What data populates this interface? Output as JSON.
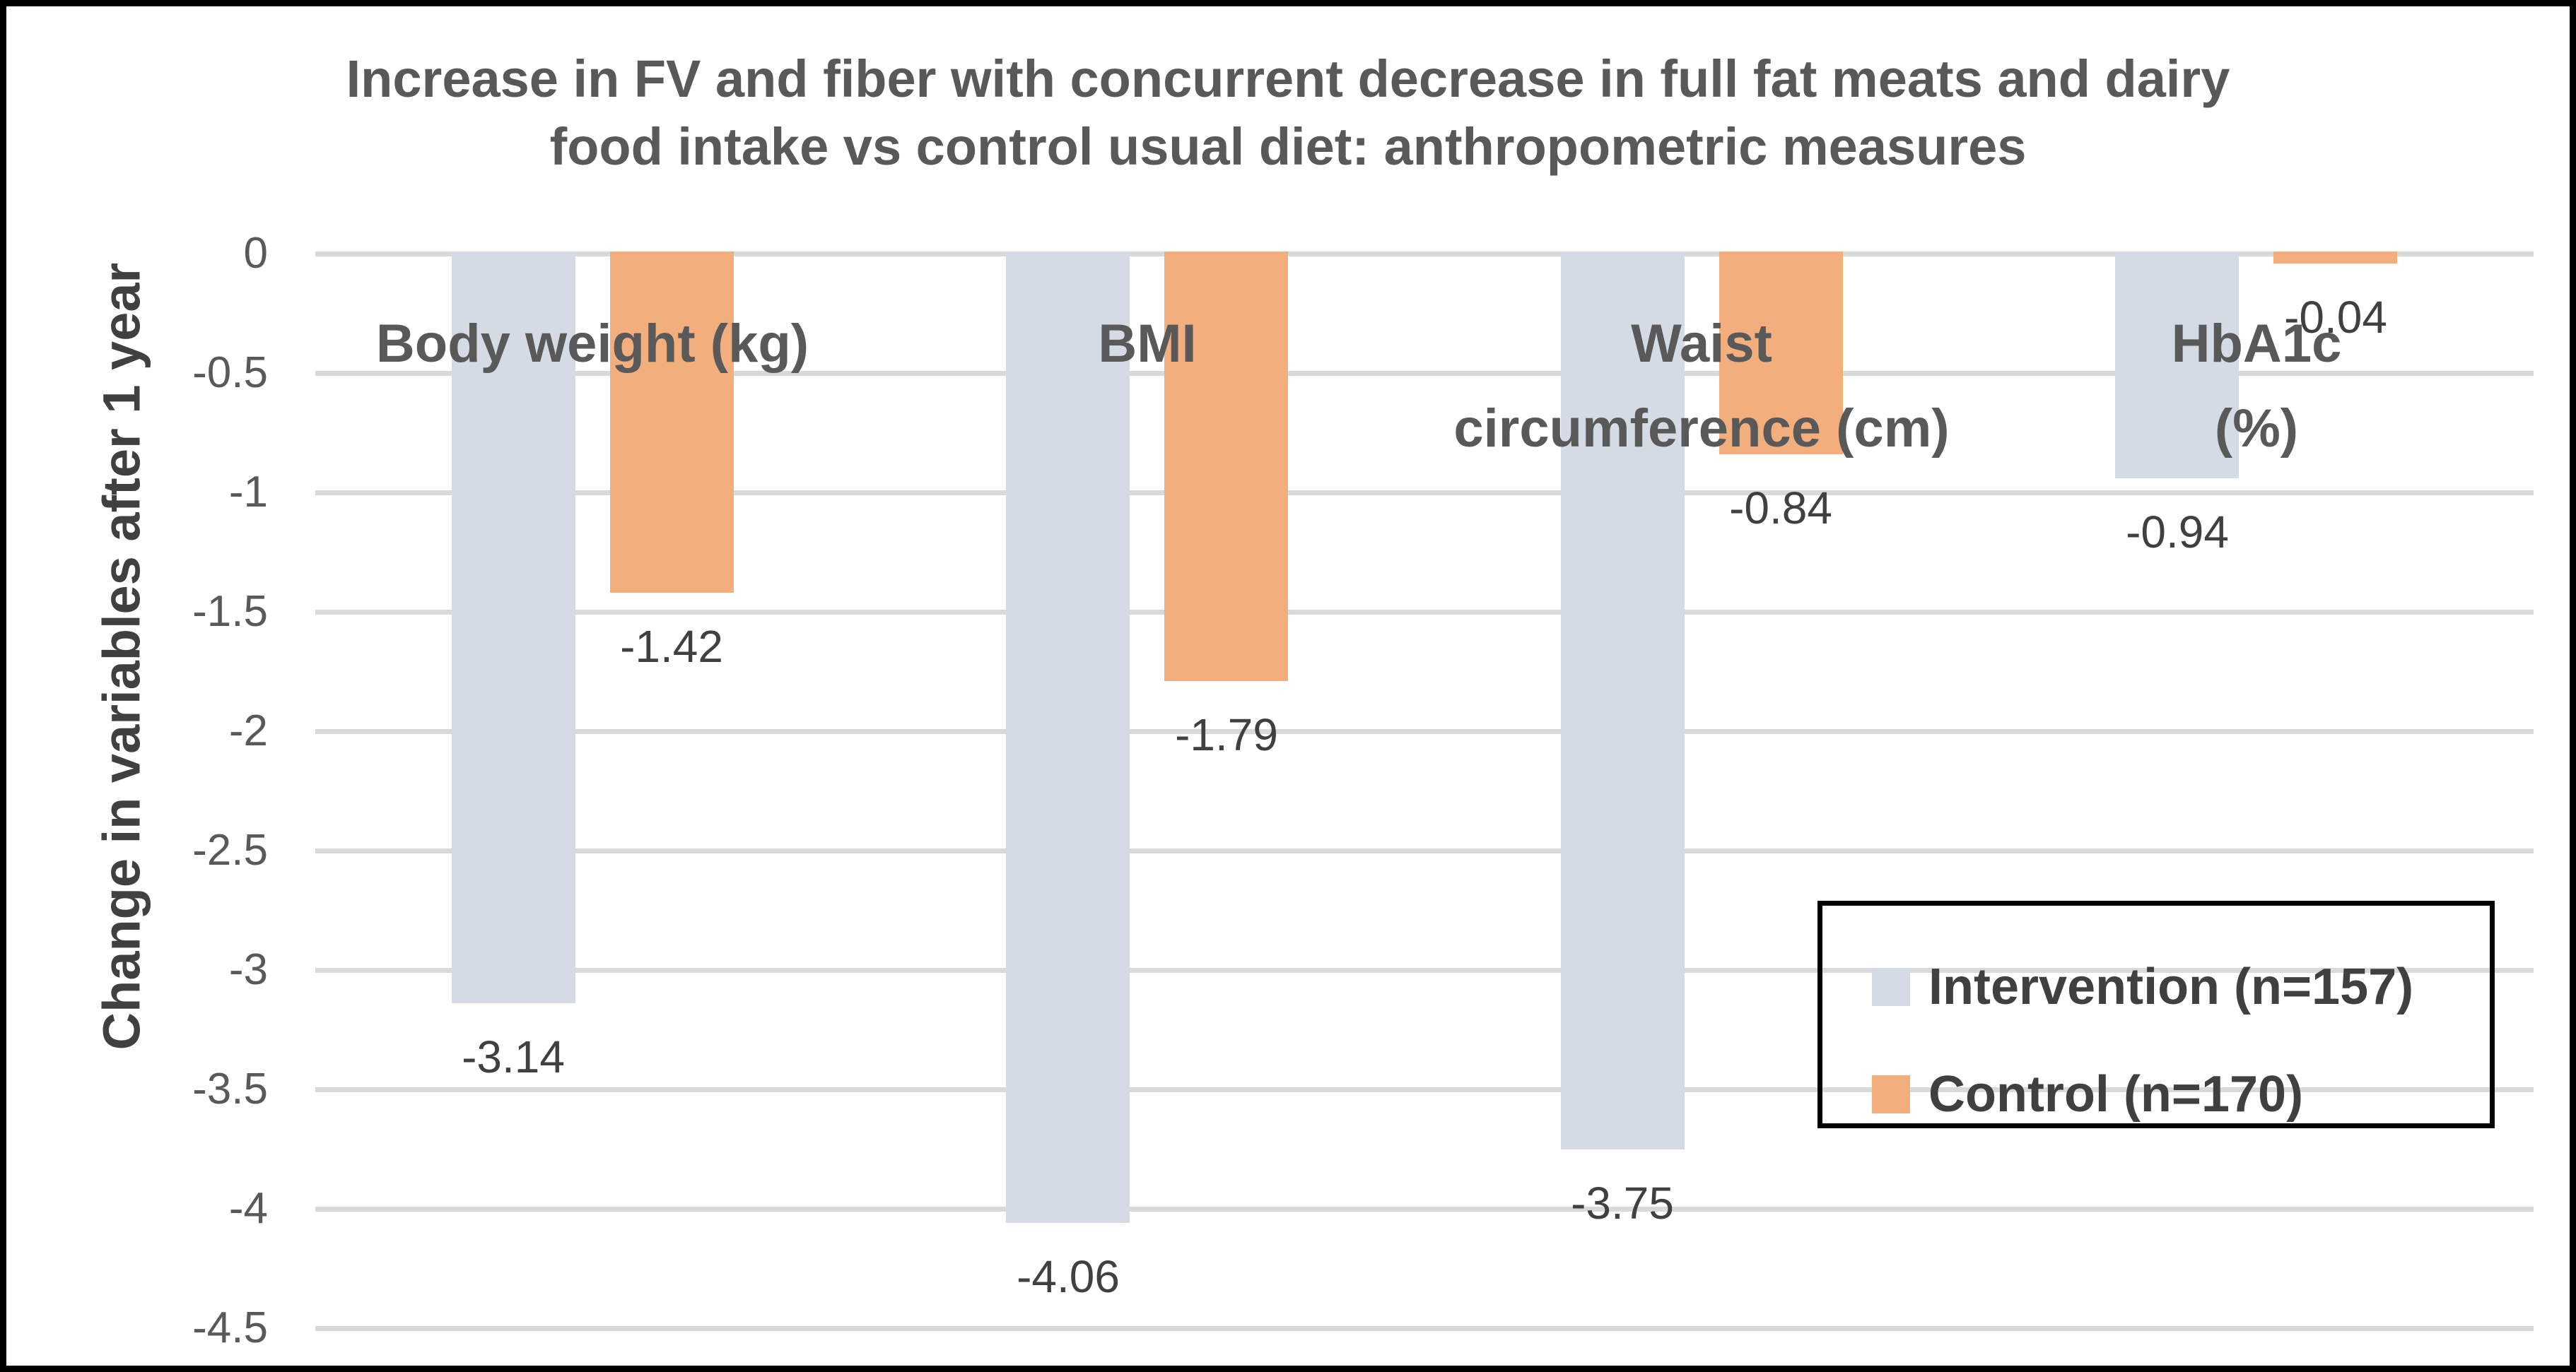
{
  "chart_data": {
    "type": "bar",
    "title_lines": [
      "Increase in FV and fiber with concurrent decrease in full fat meats and dairy",
      "food intake vs control usual diet: anthropometric measures"
    ],
    "ylabel": "Change in variables after 1 year",
    "xlabel": "",
    "categories": [
      "Body weight (kg)",
      "BMI",
      "Waist\ncircumference (cm)",
      "HbA1c\n(%)"
    ],
    "series": [
      {
        "name": "Intervention (n=157)",
        "color": "#d5dbe4",
        "values": [
          -3.14,
          -4.06,
          -3.75,
          -0.94
        ],
        "labels": [
          "-3.14",
          "-4.06",
          "-3.75",
          "-0.94"
        ]
      },
      {
        "name": "Control (n=170)",
        "color": "#f3ae7e",
        "values": [
          -1.42,
          -1.79,
          -0.84,
          -0.04
        ],
        "labels": [
          "-1.42",
          "-1.79",
          "-0.84",
          "-0.04"
        ]
      }
    ],
    "y_ticks": [
      {
        "label": "0",
        "value": 0
      },
      {
        "label": "-0.5",
        "value": -0.5
      },
      {
        "label": "-1",
        "value": -1
      },
      {
        "label": "-1.5",
        "value": -1.5
      },
      {
        "label": "-2",
        "value": -2
      },
      {
        "label": "-2.5",
        "value": -2.5
      },
      {
        "label": "-3",
        "value": -3
      },
      {
        "label": "-3.5",
        "value": -3.5
      },
      {
        "label": "-4",
        "value": -4
      },
      {
        "label": "-4.5",
        "value": -4.5
      }
    ],
    "ylim": [
      0,
      -4.5
    ],
    "grid": true,
    "data_labels": true,
    "legend_position": "inside-bottom-right",
    "colors": {
      "gridline": "#d9d9d9",
      "title_text": "#595959",
      "value_text": "#404040",
      "chart_border": "#000000",
      "legend_border": "#000000"
    }
  }
}
